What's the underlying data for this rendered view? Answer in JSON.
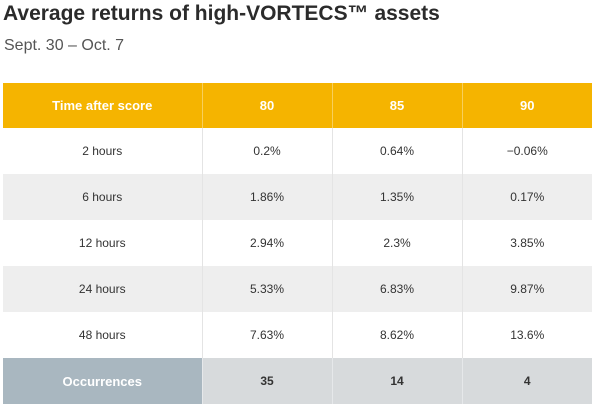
{
  "title": "Average returns of high-VORTECS™ assets",
  "subtitle": "Sept. 30 – Oct. 7",
  "colors": {
    "header": "#f5b400",
    "footer_label": "#a9b7c0",
    "footer": "#d7dadc",
    "stripe": "#eeeeee"
  },
  "chart_data": {
    "type": "table",
    "columns": [
      "Time after score",
      "80",
      "85",
      "90"
    ],
    "rows": [
      [
        "2 hours",
        "0.2%",
        "0.64%",
        "−0.06%"
      ],
      [
        "6 hours",
        "1.86%",
        "1.35%",
        "0.17%"
      ],
      [
        "12 hours",
        "2.94%",
        "2.3%",
        "3.85%"
      ],
      [
        "24 hours",
        "5.33%",
        "6.83%",
        "9.87%"
      ],
      [
        "48 hours",
        "7.63%",
        "8.62%",
        "13.6%"
      ]
    ],
    "footer": [
      "Occurrences",
      "35",
      "14",
      "4"
    ]
  }
}
